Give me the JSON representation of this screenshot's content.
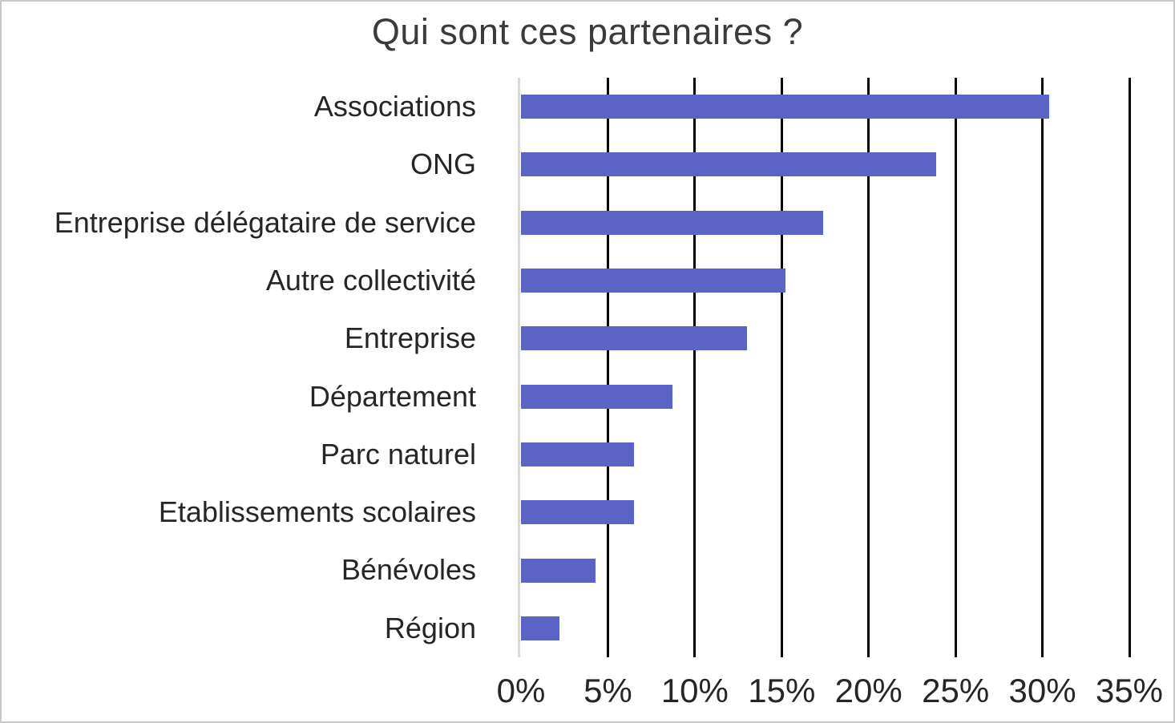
{
  "window": {
    "background": "#ffffff",
    "frame_border_color": "#c8c8c8"
  },
  "chart_data": {
    "type": "bar",
    "orientation": "horizontal",
    "title": "Qui sont ces partenaires ?",
    "categories": [
      "Associations",
      "ONG",
      "Entreprise délégataire de service",
      "Autre collectivité",
      "Entreprise",
      "Département",
      "Parc naturel",
      "Etablissements scolaires",
      "Bénévoles",
      "Région"
    ],
    "values": [
      30.4,
      23.9,
      17.4,
      15.2,
      13.0,
      8.7,
      6.5,
      6.5,
      4.3,
      2.2
    ],
    "unit": "%",
    "xlabel": "",
    "ylabel": "",
    "xlim": [
      0,
      35
    ],
    "x_tick_step": 5,
    "x_tick_labels": [
      "0%",
      "5%",
      "10%",
      "15%",
      "20%",
      "25%",
      "30%",
      "35%"
    ],
    "bar_color": "#5b64c4",
    "gridline_color": "#000000",
    "zero_axis_color": "#d9d9d9",
    "text_color": "#262626",
    "title_color": "#3b3b3b",
    "grid": "vertical gridlines on, horizontal off",
    "legend": "none",
    "data_labels": "none"
  }
}
